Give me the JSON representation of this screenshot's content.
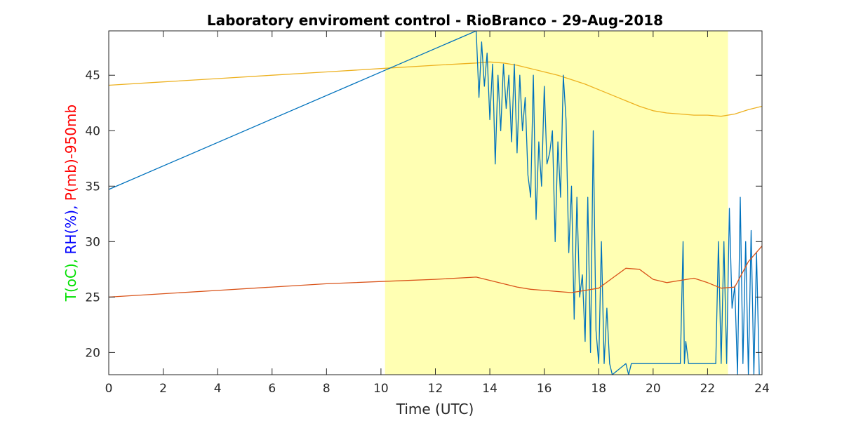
{
  "chart_data": {
    "type": "line",
    "title": "Laboratory enviroment control - RioBranco - 29-Aug-2018",
    "xlabel": "Time (UTC)",
    "ylabel_parts": [
      {
        "text": "T(oC),",
        "color": "#00e000"
      },
      {
        "text": "RH(%),",
        "color": "#0000ff"
      },
      {
        "text": "P(mb)-950mb",
        "color": "#ff0000"
      }
    ],
    "xlim": [
      0,
      24
    ],
    "ylim": [
      18,
      49
    ],
    "xticks": [
      "0",
      "2",
      "4",
      "6",
      "8",
      "10",
      "12",
      "14",
      "16",
      "18",
      "20",
      "22",
      "24"
    ],
    "yticks": [
      "20",
      "25",
      "30",
      "35",
      "40",
      "45"
    ],
    "xtick_values": [
      0,
      2,
      4,
      6,
      8,
      10,
      12,
      14,
      16,
      18,
      20,
      22,
      24
    ],
    "ytick_values": [
      20,
      25,
      30,
      35,
      40,
      45
    ],
    "shaded_interval": {
      "x": [
        10.15,
        22.75
      ],
      "color": "#ffffb3"
    },
    "series": [
      {
        "color": "#edb120",
        "x": [
          0,
          2,
          4,
          6,
          8,
          10,
          12,
          13.5,
          14,
          14.5,
          15,
          15.5,
          16,
          16.5,
          17,
          17.5,
          18,
          18.5,
          19,
          19.5,
          20,
          20.5,
          21,
          21.5,
          22,
          22.5,
          23,
          23.5,
          24
        ],
        "y": [
          44.1,
          44.4,
          44.7,
          45.0,
          45.3,
          45.6,
          45.9,
          46.1,
          46.2,
          46.1,
          45.9,
          45.6,
          45.3,
          45.0,
          44.6,
          44.2,
          43.7,
          43.2,
          42.7,
          42.2,
          41.8,
          41.6,
          41.5,
          41.4,
          41.4,
          41.3,
          41.5,
          41.9,
          42.2
        ]
      },
      {
        "color": "#0072bd",
        "x": [
          0,
          13.5,
          13.6,
          13.7,
          13.8,
          13.9,
          14.0,
          14.1,
          14.2,
          14.3,
          14.4,
          14.5,
          14.6,
          14.7,
          14.8,
          14.9,
          15.0,
          15.1,
          15.2,
          15.3,
          15.4,
          15.5,
          15.6,
          15.7,
          15.8,
          15.9,
          16.0,
          16.1,
          16.2,
          16.3,
          16.4,
          16.5,
          16.6,
          16.7,
          16.8,
          16.9,
          17.0,
          17.1,
          17.2,
          17.3,
          17.4,
          17.5,
          17.6,
          17.7,
          17.8,
          17.9,
          18.0,
          18.1,
          18.2,
          18.3,
          18.4,
          18.5,
          19.0,
          19.1,
          19.2,
          19.5,
          20,
          20.5,
          21.0,
          21.1,
          21.15,
          21.2,
          21.3,
          22,
          22.3,
          22.4,
          22.5,
          22.6,
          22.7,
          22.8,
          22.9,
          23.0,
          23.1,
          23.2,
          23.3,
          23.4,
          23.5,
          23.6,
          23.7,
          23.8,
          23.9,
          24.0
        ],
        "y": [
          34.7,
          49,
          43,
          48,
          44,
          47,
          41,
          46,
          37,
          45,
          40,
          46,
          42,
          45,
          39,
          46,
          38,
          45,
          40,
          43,
          36,
          34,
          45,
          32,
          39,
          35,
          44,
          37,
          38,
          40,
          30,
          39,
          34,
          45,
          41,
          29,
          35,
          23,
          34,
          25,
          27,
          21,
          34,
          20,
          40,
          22,
          19,
          30,
          19,
          24,
          19,
          18,
          19,
          18,
          19,
          19,
          19,
          19,
          19,
          30,
          19,
          21,
          19,
          19,
          19,
          30,
          19,
          30,
          19,
          33,
          24,
          26,
          18,
          34,
          19,
          30,
          18,
          31,
          18,
          29,
          18,
          17
        ]
      },
      {
        "color": "#d95319",
        "x": [
          0,
          2,
          4,
          6,
          8,
          10,
          12,
          13.5,
          14,
          14.5,
          15,
          15.5,
          16,
          16.5,
          17,
          17.5,
          18,
          18.5,
          19,
          19.5,
          20,
          20.5,
          21,
          21.5,
          22,
          22.5,
          23,
          23.5,
          24
        ],
        "y": [
          25.0,
          25.3,
          25.6,
          25.9,
          26.2,
          26.4,
          26.6,
          26.8,
          26.5,
          26.2,
          25.9,
          25.7,
          25.6,
          25.5,
          25.4,
          25.6,
          25.8,
          26.7,
          27.6,
          27.5,
          26.6,
          26.3,
          26.5,
          26.7,
          26.3,
          25.8,
          25.9,
          28.2,
          29.6
        ]
      }
    ]
  }
}
